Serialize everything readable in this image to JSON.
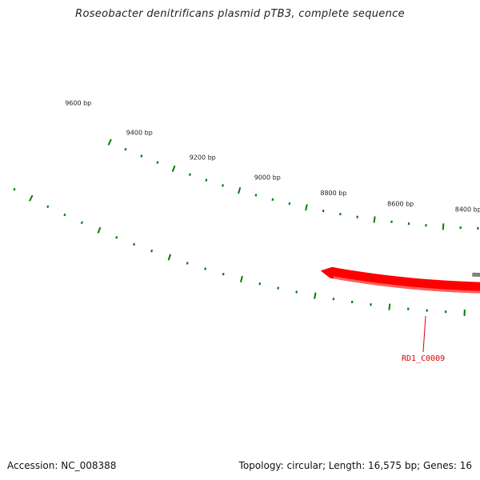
{
  "title": "Roseobacter denitrificans plasmid pTB3, complete sequence",
  "footer": {
    "accession": "Accession: NC_008388",
    "topology": "Topology: circular; Length: 16,575 bp; Genes: 16"
  },
  "scale_labels": [
    "9600 bp",
    "9400 bp",
    "9200 bp",
    "9000 bp",
    "8800 bp",
    "8600 bp",
    "8400 bp"
  ],
  "genes": [
    {
      "name": "RD1_C0009",
      "strand": "reverse"
    }
  ],
  "colors": {
    "backbone": "#808080",
    "tick": "#008000",
    "gene": "#ff0000",
    "gene_label": "#e00000"
  }
}
